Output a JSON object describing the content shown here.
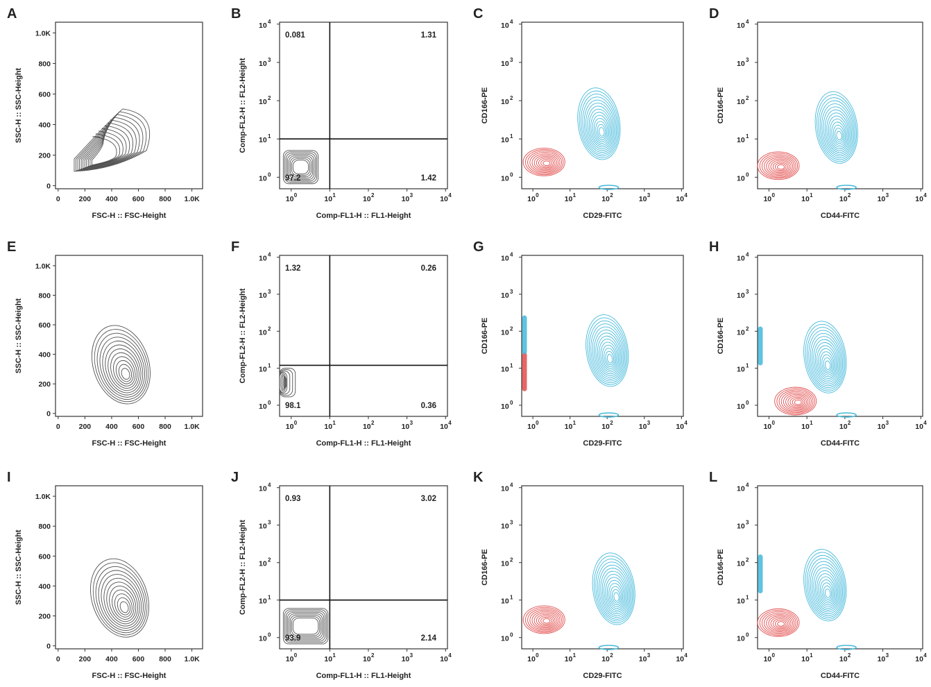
{
  "chart_data": [
    {
      "panel": "A",
      "type": "contour",
      "xlabel": "FSC-H :: FSC-Height",
      "ylabel": "SSC-H :: SSC-Height",
      "xscale": "linear",
      "yscale": "linear",
      "xlim": [
        0,
        1024
      ],
      "ylim": [
        0,
        1024
      ],
      "xticks": [
        "0",
        "200",
        "400",
        "600",
        "800",
        "1.0K"
      ],
      "yticks": [
        "0",
        "200",
        "400",
        "600",
        "800",
        "1.0K"
      ],
      "populations": [
        {
          "color": "#505050",
          "shape": "elongated",
          "x_range": [
            120,
            660
          ],
          "y_range": [
            100,
            420
          ],
          "peak": [
            520,
            260
          ]
        }
      ]
    },
    {
      "panel": "B",
      "type": "quadrant-contour",
      "xlabel": "Comp-FL1-H :: FL1-Height",
      "ylabel": "Comp-FL2-H :: FL2-Height",
      "xscale": "log",
      "yscale": "log",
      "xlim": [
        1,
        10000
      ],
      "ylim": [
        1,
        10000
      ],
      "gate": [
        10,
        10
      ],
      "quadrants": {
        "upper_left": "0.081",
        "upper_right": "1.31",
        "lower_left": "97.2",
        "lower_right": "1.42"
      },
      "populations": [
        {
          "color": "#505050",
          "x_range": [
            0.8,
            5
          ],
          "y_range": [
            0.8,
            5
          ]
        }
      ]
    },
    {
      "panel": "C",
      "type": "contour",
      "xlabel": "CD29-FITC",
      "ylabel": "CD166-PE",
      "xscale": "log",
      "yscale": "log",
      "xlim": [
        1,
        10000
      ],
      "ylim": [
        1,
        10000
      ],
      "populations": [
        {
          "color": "#e24c4c",
          "center": [
            2,
            2.5
          ]
        },
        {
          "color": "#44b9db",
          "center": [
            60,
            25
          ]
        }
      ]
    },
    {
      "panel": "D",
      "type": "contour",
      "xlabel": "CD44-FITC",
      "ylabel": "CD166-PE",
      "xscale": "log",
      "yscale": "log",
      "xlim": [
        1,
        10000
      ],
      "ylim": [
        1,
        10000
      ],
      "populations": [
        {
          "color": "#e24c4c",
          "center": [
            1.5,
            2
          ]
        },
        {
          "color": "#44b9db",
          "center": [
            60,
            20
          ]
        }
      ]
    },
    {
      "panel": "E",
      "type": "contour",
      "xlabel": "FSC-H :: FSC-Height",
      "ylabel": "SSC-H :: SSC-Height",
      "xscale": "linear",
      "yscale": "linear",
      "xlim": [
        0,
        1024
      ],
      "ylim": [
        0,
        1024
      ],
      "xticks": [
        "0",
        "200",
        "400",
        "600",
        "800",
        "1.0K"
      ],
      "yticks": [
        "0",
        "200",
        "400",
        "600",
        "800",
        "1.0K"
      ],
      "populations": [
        {
          "color": "#505050",
          "center": [
            470,
            330
          ]
        }
      ]
    },
    {
      "panel": "F",
      "type": "quadrant-contour",
      "xlabel": "Comp-FL1-H :: FL1-Height",
      "ylabel": "Comp-FL2-H :: FL2-Height",
      "xscale": "log",
      "yscale": "log",
      "xlim": [
        1,
        10000
      ],
      "ylim": [
        1,
        10000
      ],
      "gate": [
        10,
        12
      ],
      "quadrants": {
        "upper_left": "1.32",
        "upper_right": "0.26",
        "lower_left": "98.1",
        "lower_right": "0.36"
      },
      "populations": [
        {
          "color": "#505050",
          "x_range": [
            0.5,
            1
          ],
          "y_range": [
            2,
            10
          ]
        }
      ]
    },
    {
      "panel": "G",
      "type": "contour",
      "xlabel": "CD29-FITC",
      "ylabel": "CD166-PE",
      "xscale": "log",
      "yscale": "log",
      "xlim": [
        1,
        10000
      ],
      "ylim": [
        1,
        10000
      ],
      "populations": [
        {
          "color": "#e24c4c",
          "center": [
            0.5,
            8
          ]
        },
        {
          "color": "#44b9db",
          "center": [
            0.5,
            80
          ]
        },
        {
          "color": "#44b9db",
          "center": [
            100,
            30
          ]
        }
      ]
    },
    {
      "panel": "H",
      "type": "contour",
      "xlabel": "CD44-FITC",
      "ylabel": "CD166-PE",
      "xscale": "log",
      "yscale": "log",
      "xlim": [
        1,
        10000
      ],
      "ylim": [
        1,
        10000
      ],
      "populations": [
        {
          "color": "#44b9db",
          "center": [
            0.5,
            40
          ]
        },
        {
          "color": "#44b9db",
          "center": [
            30,
            20
          ]
        },
        {
          "color": "#e24c4c",
          "center": [
            5,
            1
          ]
        }
      ]
    },
    {
      "panel": "I",
      "type": "contour",
      "xlabel": "FSC-H :: FSC-Height",
      "ylabel": "SSC-H :: SSC-Height",
      "xscale": "linear",
      "yscale": "linear",
      "xlim": [
        0,
        1024
      ],
      "ylim": [
        0,
        1024
      ],
      "xticks": [
        "0",
        "200",
        "400",
        "600",
        "800",
        "1.0K"
      ],
      "yticks": [
        "0",
        "200",
        "400",
        "600",
        "800",
        "1.0K"
      ],
      "populations": [
        {
          "color": "#505050",
          "center": [
            460,
            320
          ]
        }
      ]
    },
    {
      "panel": "J",
      "type": "quadrant-contour",
      "xlabel": "Comp-FL1-H :: FL1-Height",
      "ylabel": "Comp-FL2-H :: FL2-Height",
      "xscale": "log",
      "yscale": "log",
      "xlim": [
        1,
        10000
      ],
      "ylim": [
        1,
        10000
      ],
      "gate": [
        10,
        10
      ],
      "quadrants": {
        "upper_left": "0.93",
        "upper_right": "3.02",
        "lower_left": "93.9",
        "lower_right": "2.14"
      },
      "populations": [
        {
          "color": "#505050",
          "x_range": [
            0.8,
            9
          ],
          "y_range": [
            0.8,
            6
          ]
        }
      ]
    },
    {
      "panel": "K",
      "type": "contour",
      "xlabel": "CD29-FITC",
      "ylabel": "CD166-PE",
      "xscale": "log",
      "yscale": "log",
      "xlim": [
        1,
        10000
      ],
      "ylim": [
        1,
        10000
      ],
      "populations": [
        {
          "color": "#e24c4c",
          "center": [
            2,
            3
          ]
        },
        {
          "color": "#44b9db",
          "center": [
            150,
            20
          ]
        }
      ]
    },
    {
      "panel": "L",
      "type": "contour",
      "xlabel": "CD44-FITC",
      "ylabel": "CD166-PE",
      "xscale": "log",
      "yscale": "log",
      "xlim": [
        1,
        10000
      ],
      "ylim": [
        1,
        10000
      ],
      "populations": [
        {
          "color": "#e24c4c",
          "center": [
            1.5,
            2.5
          ]
        },
        {
          "color": "#44b9db",
          "center": [
            30,
            25
          ]
        },
        {
          "color": "#44b9db",
          "center": [
            0.5,
            50
          ]
        }
      ]
    }
  ]
}
